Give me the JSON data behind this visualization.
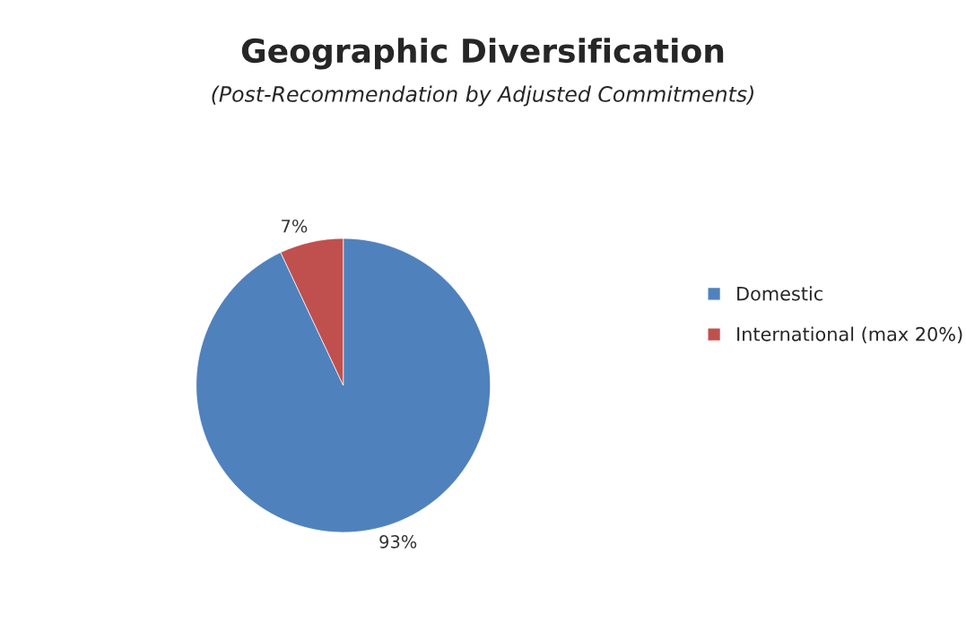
{
  "chart_data": {
    "type": "pie",
    "title": "Geographic Diversification",
    "subtitle": "(Post-Recommendation by Adjusted Commitments)",
    "categories": [
      "Domestic",
      "International (max 20%)"
    ],
    "values": [
      93,
      7
    ],
    "colors": [
      "#4f81bd",
      "#c0504d"
    ],
    "value_labels": [
      "93%",
      "7%"
    ],
    "legend": "right"
  }
}
